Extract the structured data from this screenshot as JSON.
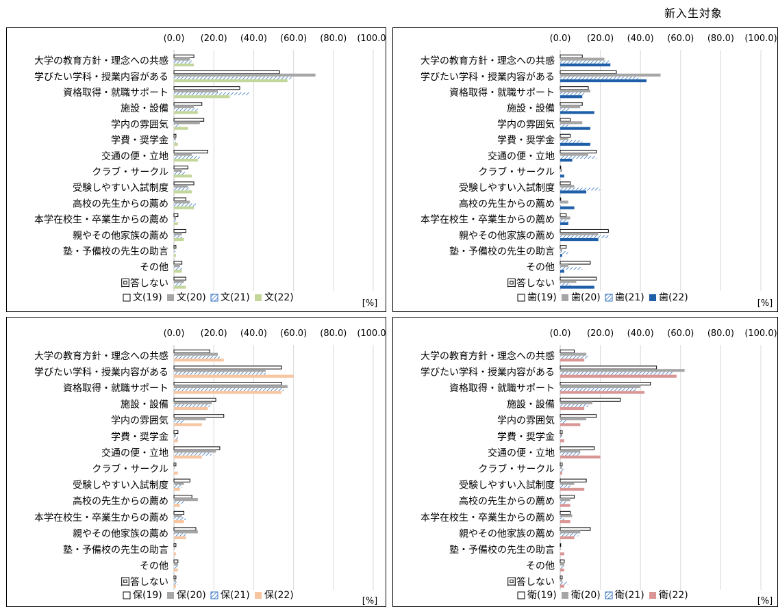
{
  "page_label": "新入生対象",
  "unit_label": "[%]",
  "categories": [
    "大学の教育方針・理念への共感",
    "学びたい学科・授業内容がある",
    "資格取得・就職サポート",
    "施設・設備",
    "学内の雰囲気",
    "学費・奨学金",
    "交通の便・立地",
    "クラブ・サークル",
    "受験しやすい入試制度",
    "高校の先生からの薦め",
    "本学在校生・卒業生からの薦め",
    "親やその他家族の薦め",
    "塾・予備校の先生の助言",
    "その他",
    "回答しない"
  ],
  "tick_labels": [
    "(0.0)",
    "(20.0)",
    "(40.0)",
    "(60.0)",
    "(80.0)",
    "(100.0)"
  ],
  "colors": {
    "y19_fill": "#ffffff",
    "y20_fill": "#a6a6a6",
    "y21_hatch": "#2f6fbf",
    "bun22": "#c4d79b",
    "shi22": "#1f5fa8",
    "ho22": "#f7c59f",
    "ei22": "#d99694"
  },
  "chart_data": [
    {
      "type": "bar",
      "orientation": "horizontal",
      "xlim": [
        0,
        100
      ],
      "x_ticks": [
        0,
        20,
        40,
        60,
        80,
        100
      ],
      "grid": true,
      "legend_position": "bottom",
      "categories_ref": "categories",
      "series": [
        {
          "name": "文(19)",
          "values": [
            10,
            53,
            33,
            14,
            15,
            1,
            17,
            7,
            10,
            6,
            2,
            6,
            1,
            4,
            6
          ]
        },
        {
          "name": "文(20)",
          "values": [
            8,
            71,
            22,
            10,
            13,
            1,
            9,
            4,
            7,
            8,
            1,
            4,
            0,
            3,
            5
          ]
        },
        {
          "name": "文(21)",
          "values": [
            9,
            59,
            38,
            12,
            3,
            1,
            13,
            6,
            8,
            11,
            1,
            4,
            1,
            4,
            4
          ]
        },
        {
          "name": "文(22)",
          "values": [
            10,
            57,
            28,
            12,
            7,
            2,
            12,
            9,
            9,
            10,
            2,
            5,
            1,
            4,
            6
          ]
        }
      ]
    },
    {
      "type": "bar",
      "orientation": "horizontal",
      "xlim": [
        0,
        100
      ],
      "x_ticks": [
        0,
        20,
        40,
        60,
        80,
        100
      ],
      "grid": true,
      "legend_position": "bottom",
      "categories_ref": "categories",
      "series": [
        {
          "name": "歯(19)",
          "values": [
            11,
            28,
            14,
            11,
            5,
            5,
            18,
            0,
            5,
            0,
            3,
            24,
            3,
            15,
            18
          ]
        },
        {
          "name": "歯(20)",
          "values": [
            22,
            50,
            15,
            10,
            11,
            4,
            14,
            1,
            7,
            4,
            5,
            19,
            1,
            4,
            8
          ]
        },
        {
          "name": "歯(21)",
          "values": [
            25,
            39,
            12,
            5,
            4,
            11,
            18,
            0,
            20,
            0,
            4,
            24,
            4,
            11,
            5
          ]
        },
        {
          "name": "歯(22)",
          "values": [
            25,
            43,
            11,
            17,
            15,
            15,
            6,
            2,
            13,
            7,
            4,
            19,
            1,
            2,
            17
          ]
        }
      ]
    },
    {
      "type": "bar",
      "orientation": "horizontal",
      "xlim": [
        0,
        100
      ],
      "x_ticks": [
        0,
        20,
        40,
        60,
        80,
        100
      ],
      "grid": true,
      "legend_position": "bottom",
      "categories_ref": "categories",
      "series": [
        {
          "name": "保(19)",
          "values": [
            18,
            54,
            54,
            21,
            25,
            2,
            23,
            1,
            8,
            9,
            5,
            11,
            1,
            2,
            1
          ]
        },
        {
          "name": "保(20)",
          "values": [
            22,
            46,
            57,
            19,
            16,
            1,
            21,
            0,
            5,
            12,
            4,
            12,
            0,
            2,
            1
          ]
        },
        {
          "name": "保(21)",
          "values": [
            23,
            46,
            55,
            18,
            5,
            2,
            19,
            0,
            4,
            5,
            6,
            6,
            0,
            2,
            2
          ]
        },
        {
          "name": "保(22)",
          "values": [
            25,
            60,
            54,
            17,
            14,
            2,
            14,
            2,
            3,
            3,
            5,
            6,
            1,
            2,
            1
          ]
        }
      ]
    },
    {
      "type": "bar",
      "orientation": "horizontal",
      "xlim": [
        0,
        100
      ],
      "x_ticks": [
        0,
        20,
        40,
        60,
        80,
        100
      ],
      "grid": true,
      "legend_position": "bottom",
      "categories_ref": "categories",
      "series": [
        {
          "name": "衛(19)",
          "values": [
            7,
            48,
            45,
            30,
            18,
            1,
            17,
            1,
            13,
            7,
            5,
            15,
            0,
            2,
            1
          ]
        },
        {
          "name": "衛(20)",
          "values": [
            13,
            62,
            40,
            16,
            13,
            1,
            10,
            1,
            7,
            5,
            6,
            10,
            0,
            2,
            1
          ]
        },
        {
          "name": "衛(21)",
          "values": [
            14,
            56,
            38,
            14,
            3,
            1,
            10,
            2,
            5,
            3,
            2,
            9,
            0,
            2,
            4
          ]
        },
        {
          "name": "衛(22)",
          "values": [
            12,
            58,
            42,
            12,
            10,
            2,
            20,
            1,
            12,
            5,
            5,
            7,
            2,
            2,
            2
          ]
        }
      ]
    }
  ]
}
